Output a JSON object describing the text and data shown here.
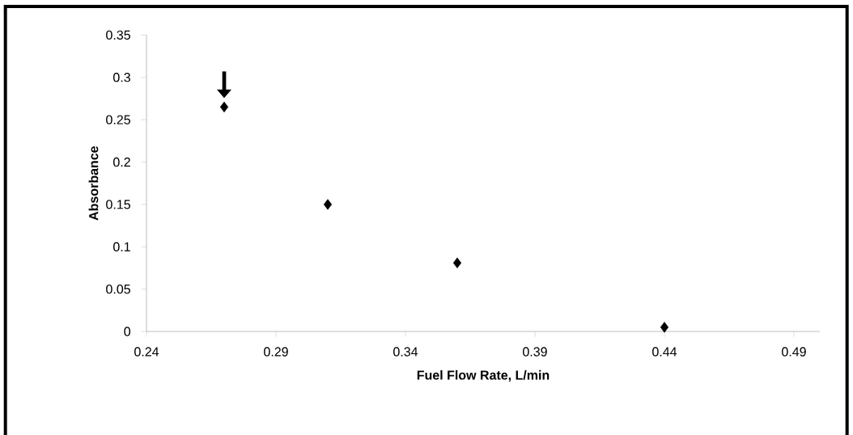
{
  "chart_data": {
    "type": "scatter",
    "xlabel": "Fuel Flow Rate, L/min",
    "ylabel": "Absorbance",
    "x": [
      0.27,
      0.31,
      0.36,
      0.44
    ],
    "values": [
      0.265,
      0.15,
      0.081,
      0.005
    ],
    "color": "#000000",
    "marker": "diamond",
    "xlim": [
      0.24,
      0.5
    ],
    "ylim": [
      0,
      0.35
    ],
    "xticks": [
      0.24,
      0.29,
      0.34,
      0.39,
      0.44,
      0.49
    ],
    "yticks": [
      0,
      0.05,
      0.1,
      0.15,
      0.2,
      0.25,
      0.3,
      0.35
    ],
    "grid": false
  }
}
